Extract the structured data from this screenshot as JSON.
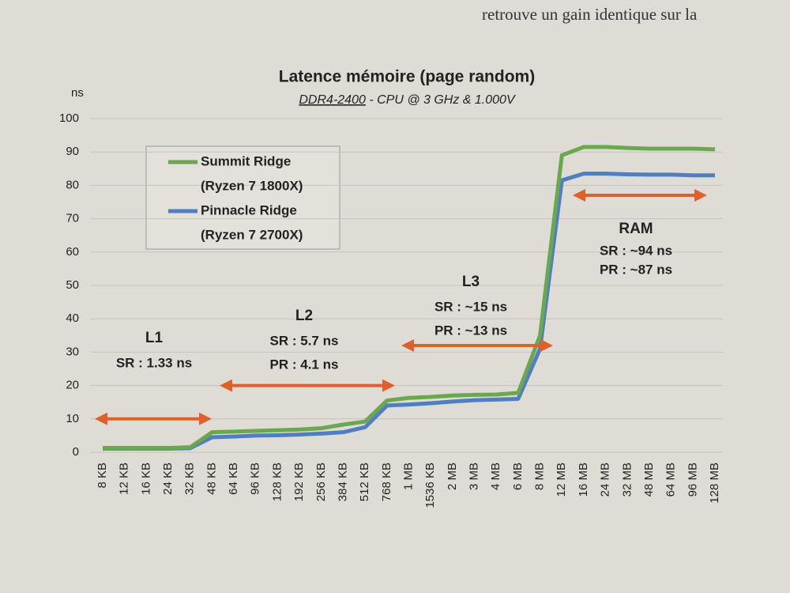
{
  "page_text": "retrouve un gain identique sur la",
  "chart_data": {
    "type": "line",
    "title": "Latence mémoire (page random)",
    "subtitle": [
      "DDR4-2400",
      "- CPU @ 3 GHz & 1.000V"
    ],
    "y_label": "ns",
    "categories": [
      "8 KB",
      "12 KB",
      "16 KB",
      "24 KB",
      "32 KB",
      "48 KB",
      "64 KB",
      "96 KB",
      "128 KB",
      "192 KB",
      "256 KB",
      "384 KB",
      "512 KB",
      "768 KB",
      "1 MB",
      "1536 KB",
      "2 MB",
      "3 MB",
      "4 MB",
      "6 MB",
      "8 MB",
      "12 MB",
      "16 MB",
      "24 MB",
      "32 MB",
      "48 MB",
      "64 MB",
      "96 MB",
      "128 MB"
    ],
    "series": [
      {
        "name": "Summit Ridge",
        "model": "(Ryzen 7 1800X)",
        "color": "#6aa84f",
        "values": [
          1.3,
          1.3,
          1.3,
          1.3,
          1.5,
          6,
          6.2,
          6.4,
          6.6,
          6.8,
          7.2,
          8.3,
          9.2,
          15.5,
          16.3,
          16.6,
          17,
          17.2,
          17.3,
          17.8,
          35,
          89,
          91.5,
          91.5,
          91.2,
          91,
          91,
          91,
          90.8
        ]
      },
      {
        "name": "Pinnacle Ridge",
        "model": "(Ryzen 7 2700X)",
        "color": "#4f7fc0",
        "values": [
          1.1,
          1.1,
          1.1,
          1.1,
          1.2,
          4.5,
          4.7,
          5,
          5.1,
          5.3,
          5.6,
          6,
          7.5,
          14,
          14.3,
          14.7,
          15.2,
          15.6,
          15.8,
          16,
          31,
          81.5,
          83.5,
          83.5,
          83.3,
          83.2,
          83.2,
          83,
          83
        ]
      }
    ],
    "ylim": [
      0,
      100
    ],
    "yticks": [
      0,
      10,
      20,
      30,
      40,
      50,
      60,
      70,
      80,
      90,
      100
    ],
    "grid": true,
    "annotations": [
      {
        "label": "L1",
        "lines": [
          "SR : 1.33 ns"
        ]
      },
      {
        "label": "L2",
        "lines": [
          "SR : 5.7 ns",
          "PR : 4.1 ns"
        ]
      },
      {
        "label": "L3",
        "lines": [
          "SR : ~15 ns",
          "PR : ~13 ns"
        ]
      },
      {
        "label": "RAM",
        "lines": [
          "SR : ~94 ns",
          "PR : ~87 ns"
        ]
      }
    ],
    "arrow_color": "#e0602c"
  }
}
